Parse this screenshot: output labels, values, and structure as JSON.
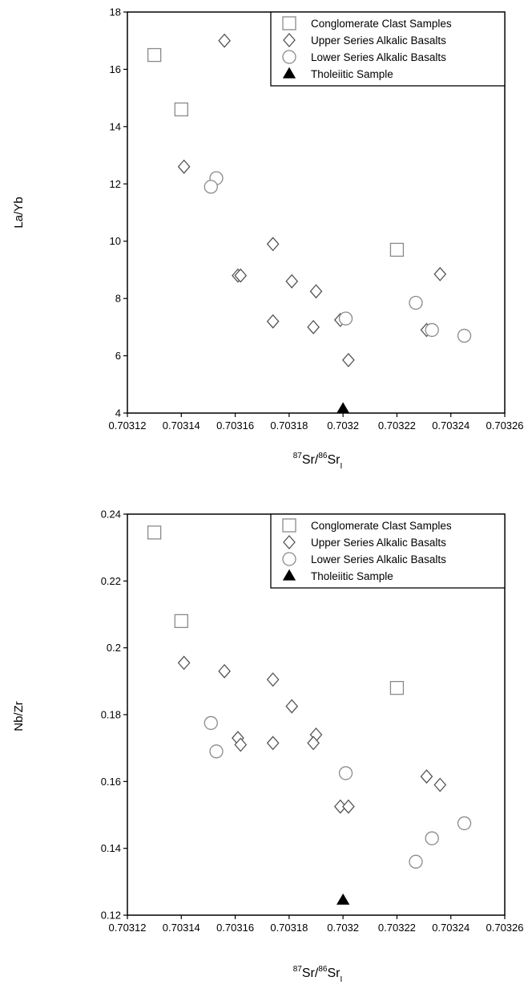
{
  "chart_data": [
    {
      "type": "scatter",
      "ylabel": "La/Yb",
      "xlabel": {
        "sup1": "87",
        "base1": "Sr/",
        "sup2": "86",
        "base2": "Sr",
        "sub": "I"
      },
      "xlim": [
        0.70312,
        0.70326
      ],
      "ylim": [
        4,
        18
      ],
      "x_ticks": [
        "0.70312",
        "0.70314",
        "0.70316",
        "0.70318",
        "0.7032",
        "0.70322",
        "0.70324",
        "0.70326"
      ],
      "y_ticks": [
        "4",
        "6",
        "8",
        "10",
        "12",
        "14",
        "16",
        "18"
      ],
      "legend_position": "top-right",
      "series": [
        {
          "name": "Conglomerate Clast Samples",
          "marker": "square",
          "color": "#8a8a8a",
          "points": [
            [
              0.70313,
              16.5
            ],
            [
              0.70314,
              14.6
            ],
            [
              0.70322,
              9.7
            ]
          ]
        },
        {
          "name": "Upper Series Alkalic Basalts",
          "marker": "diamond",
          "color": "#555555",
          "points": [
            [
              0.703156,
              17.0
            ],
            [
              0.703141,
              12.6
            ],
            [
              0.703174,
              9.9
            ],
            [
              0.703161,
              8.8
            ],
            [
              0.703162,
              8.8
            ],
            [
              0.703181,
              8.6
            ],
            [
              0.70319,
              8.25
            ],
            [
              0.703236,
              8.85
            ],
            [
              0.703174,
              7.2
            ],
            [
              0.703189,
              7.0
            ],
            [
              0.703199,
              7.25
            ],
            [
              0.703231,
              6.9
            ],
            [
              0.703202,
              5.85
            ]
          ]
        },
        {
          "name": "Lower Series Alkalic Basalts",
          "marker": "circle",
          "color": "#8a8a8a",
          "points": [
            [
              0.703153,
              12.2
            ],
            [
              0.703151,
              11.9
            ],
            [
              0.703201,
              7.3
            ],
            [
              0.703227,
              7.85
            ],
            [
              0.703233,
              6.9
            ],
            [
              0.703245,
              6.7
            ]
          ]
        },
        {
          "name": "Tholeiitic Sample",
          "marker": "triangle",
          "color": "#000000",
          "points": [
            [
              0.7032,
              4.15
            ]
          ]
        }
      ]
    },
    {
      "type": "scatter",
      "ylabel": "Nb/Zr",
      "xlabel": {
        "sup1": "87",
        "base1": "Sr/",
        "sup2": "86",
        "base2": "Sr",
        "sub": "I"
      },
      "xlim": [
        0.70312,
        0.70326
      ],
      "ylim": [
        0.12,
        0.24
      ],
      "x_ticks": [
        "0.70312",
        "0.70314",
        "0.70316",
        "0.70318",
        "0.7032",
        "0.70322",
        "0.70324",
        "0.70326"
      ],
      "y_ticks": [
        "0.12",
        "0.14",
        "0.16",
        "0.18",
        "0.2",
        "0.22",
        "0.24"
      ],
      "legend_position": "top-right",
      "series": [
        {
          "name": "Conglomerate Clast Samples",
          "marker": "square",
          "color": "#8a8a8a",
          "points": [
            [
              0.70313,
              0.2345
            ],
            [
              0.70314,
              0.208
            ],
            [
              0.70322,
              0.188
            ]
          ]
        },
        {
          "name": "Upper Series Alkalic Basalts",
          "marker": "diamond",
          "color": "#555555",
          "points": [
            [
              0.703141,
              0.1955
            ],
            [
              0.703156,
              0.193
            ],
            [
              0.703174,
              0.1905
            ],
            [
              0.703181,
              0.1825
            ],
            [
              0.703161,
              0.173
            ],
            [
              0.703162,
              0.171
            ],
            [
              0.703174,
              0.1715
            ],
            [
              0.70319,
              0.174
            ],
            [
              0.703189,
              0.1715
            ],
            [
              0.703199,
              0.1525
            ],
            [
              0.703202,
              0.1525
            ],
            [
              0.703231,
              0.1615
            ],
            [
              0.703236,
              0.159
            ]
          ]
        },
        {
          "name": "Lower Series Alkalic Basalts",
          "marker": "circle",
          "color": "#8a8a8a",
          "points": [
            [
              0.703151,
              0.1775
            ],
            [
              0.703153,
              0.169
            ],
            [
              0.703201,
              0.1625
            ],
            [
              0.703245,
              0.1475
            ],
            [
              0.703233,
              0.143
            ],
            [
              0.703227,
              0.136
            ]
          ]
        },
        {
          "name": "Tholeiitic Sample",
          "marker": "triangle",
          "color": "#000000",
          "points": [
            [
              0.7032,
              0.1245
            ]
          ]
        }
      ]
    }
  ]
}
